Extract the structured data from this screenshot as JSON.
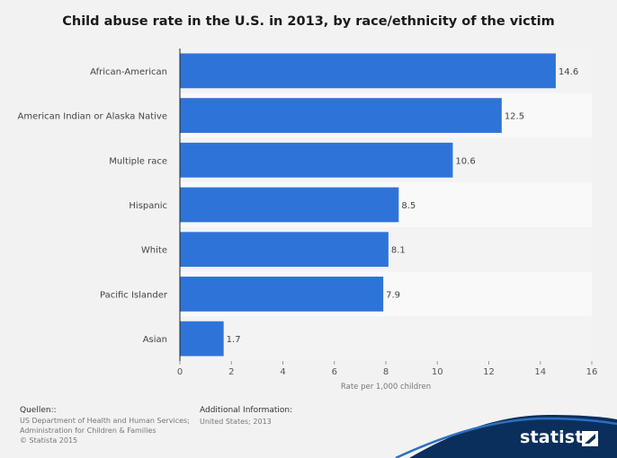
{
  "chart_data": {
    "type": "bar",
    "orientation": "horizontal",
    "title": "Child abuse rate in the U.S. in 2013, by race/ethnicity of the victim",
    "categories": [
      "African-American",
      "American Indian or Alaska Native",
      "Multiple race",
      "Hispanic",
      "White",
      "Pacific Islander",
      "Asian"
    ],
    "values": [
      14.6,
      12.5,
      10.6,
      8.5,
      8.1,
      7.9,
      1.7
    ],
    "value_labels": [
      "14.6",
      "12.5",
      "10.6",
      "8.5",
      "8.1",
      "7.9",
      "1.7"
    ],
    "xlabel": "Rate per 1,000 children",
    "ylabel": "",
    "xlim": [
      0,
      16
    ],
    "xticks": [
      0,
      2,
      4,
      6,
      8,
      10,
      12,
      14,
      16
    ],
    "bar_color": "#2e74d8",
    "grid": false
  },
  "footer": {
    "sources_heading": "Quellen::",
    "sources_lines": [
      "US Department of Health and Human Services;",
      "Administration for Children & Families",
      "© Statista 2015"
    ],
    "info_heading": "Additional Information:",
    "info_text": "United States; 2013",
    "brand": "statista",
    "brand_color": "#0a2f5c"
  }
}
